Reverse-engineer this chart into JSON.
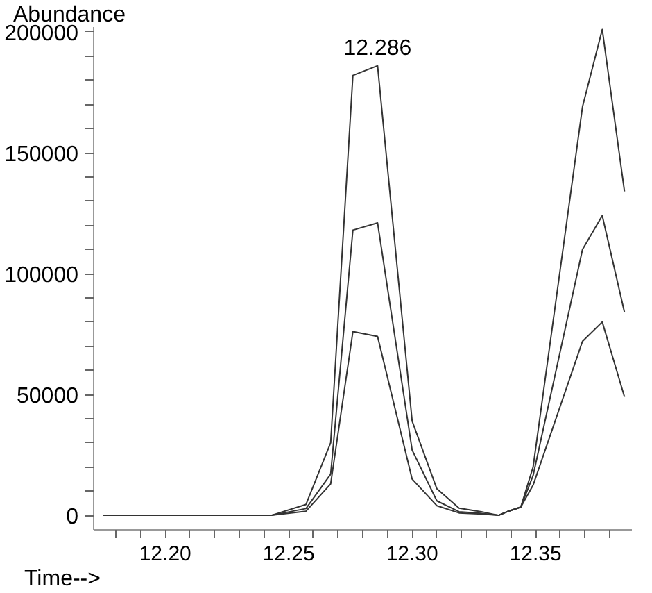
{
  "chart_data": {
    "type": "line",
    "xlabel": "Time-->",
    "ylabel": "Abundance",
    "x": [
      12.175,
      12.243,
      12.257,
      12.267,
      12.276,
      12.286,
      12.3,
      12.31,
      12.319,
      12.328,
      12.335,
      12.339,
      12.344,
      12.349,
      12.369,
      12.377,
      12.386
    ],
    "series": [
      {
        "color": "#333333",
        "values": [
          0,
          0,
          4500,
          30000,
          182000,
          186000,
          39000,
          11000,
          3000,
          1500,
          0,
          1700,
          3400,
          20000,
          169000,
          201000,
          134000
        ]
      },
      {
        "color": "#333333",
        "values": [
          0,
          0,
          2800,
          17000,
          118000,
          121000,
          27000,
          6000,
          1500,
          800,
          0,
          1700,
          3400,
          16500,
          110000,
          124000,
          84000
        ]
      },
      {
        "color": "#333333",
        "values": [
          0,
          0,
          1700,
          13000,
          76000,
          74000,
          15000,
          4000,
          1000,
          500,
          0,
          1700,
          3400,
          12500,
          72000,
          80000,
          49000
        ]
      }
    ],
    "annotations": [
      {
        "text": "12.286",
        "x": 12.286,
        "y": 186000
      }
    ],
    "xlim": [
      12.171,
      12.389
    ],
    "ylim": [
      -6000,
      202000
    ],
    "xticks": [
      {
        "value": 12.18,
        "label": null
      },
      {
        "value": 12.19,
        "label": null
      },
      {
        "value": 12.2,
        "label": "12.20"
      },
      {
        "value": 12.21,
        "label": null
      },
      {
        "value": 12.22,
        "label": null
      },
      {
        "value": 12.23,
        "label": null
      },
      {
        "value": 12.24,
        "label": null
      },
      {
        "value": 12.25,
        "label": "12.25"
      },
      {
        "value": 12.26,
        "label": null
      },
      {
        "value": 12.27,
        "label": null
      },
      {
        "value": 12.28,
        "label": null
      },
      {
        "value": 12.29,
        "label": null
      },
      {
        "value": 12.3,
        "label": "12.30"
      },
      {
        "value": 12.31,
        "label": null
      },
      {
        "value": 12.32,
        "label": null
      },
      {
        "value": 12.33,
        "label": null
      },
      {
        "value": 12.34,
        "label": null
      },
      {
        "value": 12.35,
        "label": "12.35"
      },
      {
        "value": 12.36,
        "label": null
      },
      {
        "value": 12.37,
        "label": null
      },
      {
        "value": 12.38,
        "label": null
      }
    ],
    "yticks": [
      0,
      {
        "value": 10000,
        "label": null
      },
      {
        "value": 20000,
        "label": null
      },
      {
        "value": 30000,
        "label": null
      },
      {
        "value": 40000,
        "label": null
      },
      50000,
      {
        "value": 60000,
        "label": null
      },
      {
        "value": 70000,
        "label": null
      },
      {
        "value": 80000,
        "label": null
      },
      {
        "value": 90000,
        "label": null
      },
      100000,
      {
        "value": 110000,
        "label": null
      },
      {
        "value": 120000,
        "label": null
      },
      {
        "value": 130000,
        "label": null
      },
      {
        "value": 140000,
        "label": null
      },
      150000,
      {
        "value": 160000,
        "label": null
      },
      {
        "value": 170000,
        "label": null
      },
      {
        "value": 180000,
        "label": null
      },
      {
        "value": 190000,
        "label": null
      },
      200000
    ],
    "grid": false,
    "marker": "none",
    "line_style": "solid"
  }
}
